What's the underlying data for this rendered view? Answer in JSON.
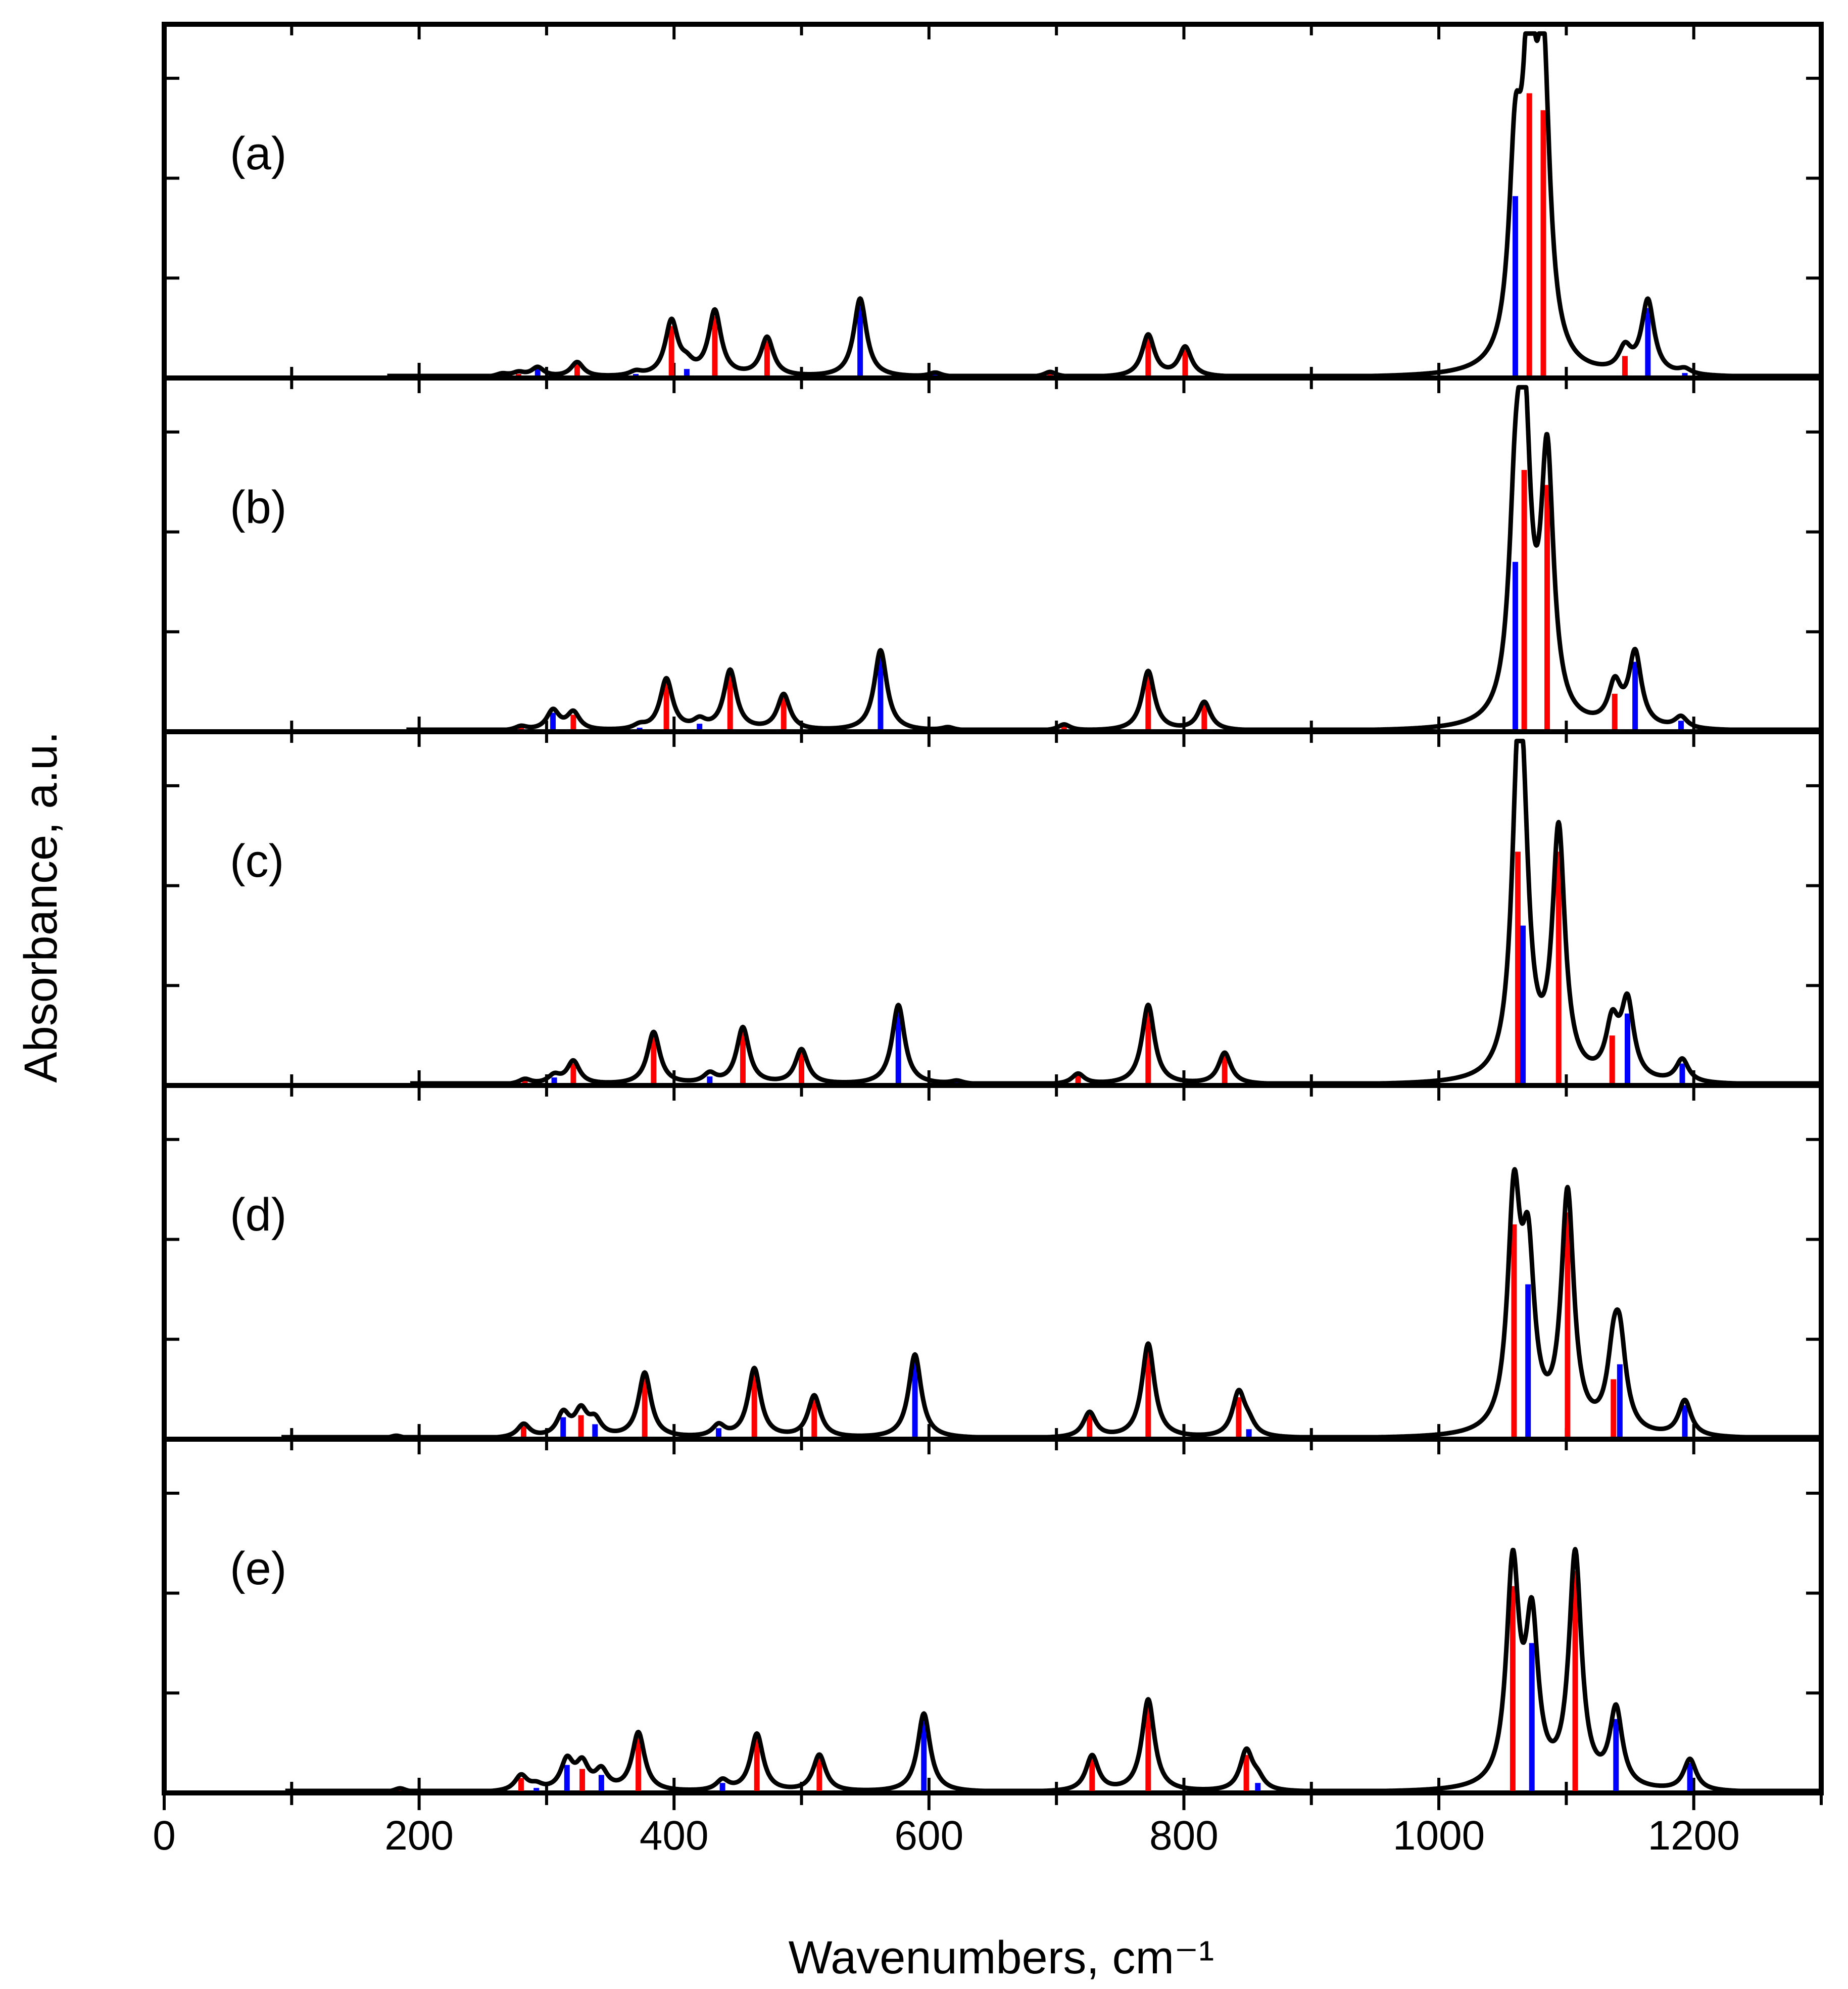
{
  "chart_data": {
    "type": "line",
    "title": "",
    "xlabel": "Wavenumbers, cm⁻¹",
    "ylabel": "Absorbance, a.u.",
    "xlim": [
      0,
      1300
    ],
    "xticks": [
      0,
      200,
      400,
      600,
      800,
      1000,
      1200
    ],
    "x_minor_step": 100,
    "ylim": [
      0,
      3.5
    ],
    "y_tick_step": 1,
    "grid": false,
    "linewidth_cm": 6,
    "colors": {
      "envelope": "#000000",
      "red": "#ff0000",
      "blue": "#0000ff",
      "frame": "#000000"
    },
    "panels": [
      {
        "label": "(a)",
        "peaks": [
          {
            "x": 265,
            "h": 0.03,
            "c": "blue"
          },
          {
            "x": 278,
            "h": 0.04,
            "c": "red"
          },
          {
            "x": 293,
            "h": 0.09,
            "c": "blue"
          },
          {
            "x": 324,
            "h": 0.14,
            "c": "red"
          },
          {
            "x": 370,
            "h": 0.04,
            "c": "blue"
          },
          {
            "x": 398,
            "h": 0.52,
            "c": "red"
          },
          {
            "x": 410,
            "h": 0.09,
            "c": "blue"
          },
          {
            "x": 432,
            "h": 0.62,
            "c": "red"
          },
          {
            "x": 473,
            "h": 0.37,
            "c": "red"
          },
          {
            "x": 546,
            "h": 0.75,
            "c": "blue"
          },
          {
            "x": 605,
            "h": 0.04,
            "c": "blue"
          },
          {
            "x": 695,
            "h": 0.05,
            "c": "red"
          },
          {
            "x": 772,
            "h": 0.4,
            "c": "red"
          },
          {
            "x": 801,
            "h": 0.28,
            "c": "red"
          },
          {
            "x": 1060,
            "h": 1.82,
            "c": "blue"
          },
          {
            "x": 1071,
            "h": 2.85,
            "c": "red"
          },
          {
            "x": 1082,
            "h": 2.68,
            "c": "red"
          },
          {
            "x": 1146,
            "h": 0.22,
            "c": "red"
          },
          {
            "x": 1164,
            "h": 0.7,
            "c": "blue"
          },
          {
            "x": 1193,
            "h": 0.05,
            "c": "blue"
          }
        ]
      },
      {
        "label": "(b)",
        "peaks": [
          {
            "x": 280,
            "h": 0.04,
            "c": "red"
          },
          {
            "x": 305,
            "h": 0.19,
            "c": "blue"
          },
          {
            "x": 321,
            "h": 0.17,
            "c": "red"
          },
          {
            "x": 373,
            "h": 0.04,
            "c": "blue"
          },
          {
            "x": 394,
            "h": 0.49,
            "c": "red"
          },
          {
            "x": 420,
            "h": 0.08,
            "c": "blue"
          },
          {
            "x": 444,
            "h": 0.57,
            "c": "red"
          },
          {
            "x": 486,
            "h": 0.34,
            "c": "red"
          },
          {
            "x": 562,
            "h": 0.77,
            "c": "blue"
          },
          {
            "x": 615,
            "h": 0.03,
            "c": "blue"
          },
          {
            "x": 706,
            "h": 0.06,
            "c": "red"
          },
          {
            "x": 772,
            "h": 0.57,
            "c": "red"
          },
          {
            "x": 816,
            "h": 0.27,
            "c": "red"
          },
          {
            "x": 1060,
            "h": 1.7,
            "c": "blue"
          },
          {
            "x": 1067,
            "h": 2.62,
            "c": "red"
          },
          {
            "x": 1085,
            "h": 2.47,
            "c": "red"
          },
          {
            "x": 1138,
            "h": 0.38,
            "c": "red"
          },
          {
            "x": 1154,
            "h": 0.7,
            "c": "blue"
          },
          {
            "x": 1190,
            "h": 0.11,
            "c": "blue"
          }
        ]
      },
      {
        "label": "(c)",
        "peaks": [
          {
            "x": 283,
            "h": 0.05,
            "c": "red"
          },
          {
            "x": 306,
            "h": 0.08,
            "c": "blue"
          },
          {
            "x": 321,
            "h": 0.22,
            "c": "red"
          },
          {
            "x": 384,
            "h": 0.5,
            "c": "red"
          },
          {
            "x": 428,
            "h": 0.09,
            "c": "blue"
          },
          {
            "x": 454,
            "h": 0.54,
            "c": "red"
          },
          {
            "x": 500,
            "h": 0.33,
            "c": "red"
          },
          {
            "x": 576,
            "h": 0.76,
            "c": "blue"
          },
          {
            "x": 622,
            "h": 0.03,
            "c": "blue"
          },
          {
            "x": 717,
            "h": 0.1,
            "c": "red"
          },
          {
            "x": 772,
            "h": 0.76,
            "c": "red"
          },
          {
            "x": 832,
            "h": 0.3,
            "c": "red"
          },
          {
            "x": 1062,
            "h": 2.34,
            "c": "red"
          },
          {
            "x": 1066,
            "h": 1.6,
            "c": "blue"
          },
          {
            "x": 1094,
            "h": 2.34,
            "c": "red"
          },
          {
            "x": 1136,
            "h": 0.5,
            "c": "red"
          },
          {
            "x": 1148,
            "h": 0.72,
            "c": "blue"
          },
          {
            "x": 1191,
            "h": 0.22,
            "c": "blue"
          }
        ]
      },
      {
        "label": "(d)",
        "peaks": [
          {
            "x": 182,
            "h": 0.03,
            "c": "red"
          },
          {
            "x": 282,
            "h": 0.13,
            "c": "red"
          },
          {
            "x": 313,
            "h": 0.22,
            "c": "blue"
          },
          {
            "x": 327,
            "h": 0.24,
            "c": "red"
          },
          {
            "x": 338,
            "h": 0.15,
            "c": "blue"
          },
          {
            "x": 377,
            "h": 0.62,
            "c": "red"
          },
          {
            "x": 435,
            "h": 0.11,
            "c": "blue"
          },
          {
            "x": 463,
            "h": 0.66,
            "c": "red"
          },
          {
            "x": 510,
            "h": 0.4,
            "c": "red"
          },
          {
            "x": 589,
            "h": 0.8,
            "c": "blue"
          },
          {
            "x": 726,
            "h": 0.24,
            "c": "red"
          },
          {
            "x": 772,
            "h": 0.9,
            "c": "red"
          },
          {
            "x": 843,
            "h": 0.42,
            "c": "red"
          },
          {
            "x": 851,
            "h": 0.1,
            "c": "blue"
          },
          {
            "x": 1059,
            "h": 2.15,
            "c": "red"
          },
          {
            "x": 1070,
            "h": 1.55,
            "c": "blue"
          },
          {
            "x": 1101,
            "h": 2.27,
            "c": "red"
          },
          {
            "x": 1137,
            "h": 0.6,
            "c": "red"
          },
          {
            "x": 1142,
            "h": 0.75,
            "c": "blue"
          },
          {
            "x": 1193,
            "h": 0.34,
            "c": "blue"
          }
        ]
      },
      {
        "label": "(e)",
        "peaks": [
          {
            "x": 185,
            "h": 0.04,
            "c": "red"
          },
          {
            "x": 280,
            "h": 0.15,
            "c": "red"
          },
          {
            "x": 292,
            "h": 0.05,
            "c": "blue"
          },
          {
            "x": 316,
            "h": 0.28,
            "c": "blue"
          },
          {
            "x": 328,
            "h": 0.24,
            "c": "red"
          },
          {
            "x": 343,
            "h": 0.18,
            "c": "blue"
          },
          {
            "x": 372,
            "h": 0.56,
            "c": "red"
          },
          {
            "x": 438,
            "h": 0.1,
            "c": "blue"
          },
          {
            "x": 465,
            "h": 0.55,
            "c": "red"
          },
          {
            "x": 514,
            "h": 0.35,
            "c": "red"
          },
          {
            "x": 596,
            "h": 0.75,
            "c": "blue"
          },
          {
            "x": 728,
            "h": 0.34,
            "c": "red"
          },
          {
            "x": 772,
            "h": 0.88,
            "c": "red"
          },
          {
            "x": 849,
            "h": 0.38,
            "c": "red"
          },
          {
            "x": 858,
            "h": 0.1,
            "c": "blue"
          },
          {
            "x": 1058,
            "h": 2.07,
            "c": "red"
          },
          {
            "x": 1073,
            "h": 1.5,
            "c": "blue"
          },
          {
            "x": 1107,
            "h": 2.22,
            "c": "red"
          },
          {
            "x": 1139,
            "h": 0.74,
            "c": "blue"
          },
          {
            "x": 1197,
            "h": 0.3,
            "c": "blue"
          }
        ]
      }
    ]
  }
}
